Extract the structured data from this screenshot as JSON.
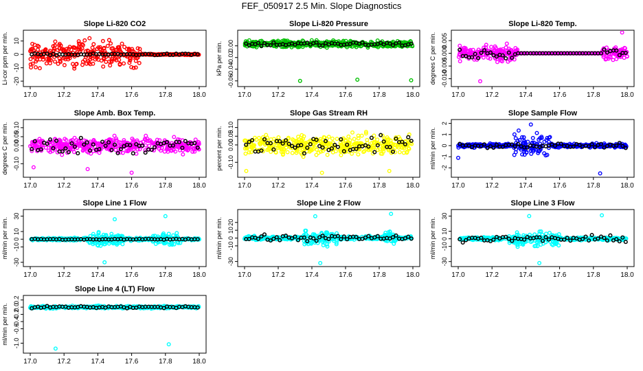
{
  "page_title": "FEF_050917  2.5 Min. Slope Diagnostics",
  "colors": {
    "overlay": "#000000",
    "axis": "#000000"
  },
  "chart_data": [
    {
      "type": "scatter",
      "title": "Slope Li-820 CO2",
      "ylabel": "Li-cor ppm per min.",
      "color": "#ff0000",
      "xlim": [
        17.0,
        18.0
      ],
      "ylim": [
        -22,
        16
      ],
      "xticks": [
        "17.0",
        "17.2",
        "17.4",
        "17.6",
        "17.8",
        "18.0"
      ],
      "yticks": [
        "-20",
        "-10",
        "0",
        "10"
      ],
      "pattern": {
        "spread": 6,
        "burst_from": 17.0,
        "burst_to": 17.65,
        "burst_spread": 14,
        "tail_from": 17.65,
        "tail_spread": 0.6,
        "overlay_spread": 0.8
      }
    },
    {
      "type": "scatter",
      "title": "Slope Li-820 Pressure",
      "ylabel": "kPa per min.",
      "color": "#00c000",
      "xlim": [
        17.0,
        18.0
      ],
      "ylim": [
        -0.065,
        0.022
      ],
      "xticks": [
        "17.0",
        "17.2",
        "17.4",
        "17.6",
        "17.8",
        "18.0"
      ],
      "yticks": [
        "-0.06",
        "-0.04",
        "-0.02",
        "0.00"
      ],
      "pattern": {
        "spread": 0.008,
        "center": 0.003,
        "outliers": [
          [
            17.33,
            -0.06
          ],
          [
            17.67,
            -0.058
          ],
          [
            17.99,
            -0.059
          ]
        ],
        "overlay_spread": 0.005
      }
    },
    {
      "type": "scatter",
      "title": "Slope Li-820 Temp.",
      "ylabel": "degrees C per min.",
      "color": "#ff00ff",
      "xlim": [
        17.0,
        18.0
      ],
      "ylim": [
        -0.012,
        0.008
      ],
      "xticks": [
        "17.0",
        "17.2",
        "17.4",
        "17.6",
        "17.8",
        "18.0"
      ],
      "yticks": [
        "-0.010",
        "-0.005",
        "0.000",
        "0.005"
      ],
      "pattern": {
        "spread": 0.0035,
        "burst_from": 17.0,
        "burst_to": 17.35,
        "burst_spread": 0.004,
        "flat_from": 17.35,
        "flat_to": 17.85,
        "tail_from": 17.85,
        "tail_spread": 0.004,
        "outliers": [
          [
            17.97,
            0.0082
          ],
          [
            17.13,
            -0.011
          ]
        ],
        "overlay_spread": 0.003
      }
    },
    {
      "type": "scatter",
      "title": "Slope Amb. Box Temp.",
      "ylabel": "degrees C per min.",
      "color": "#ff00ff",
      "xlim": [
        17.0,
        18.0
      ],
      "ylim": [
        -0.16,
        0.13
      ],
      "xticks": [
        "17.0",
        "17.2",
        "17.4",
        "17.6",
        "17.8",
        "18.0"
      ],
      "yticks": [
        "-0.10",
        "0.00",
        "0.05",
        "0.10"
      ],
      "pattern": {
        "spread": 0.06,
        "outliers": [
          [
            17.6,
            -0.15
          ],
          [
            17.02,
            -0.12
          ],
          [
            17.34,
            -0.13
          ]
        ],
        "overlay_spread": 0.06
      }
    },
    {
      "type": "scatter",
      "title": "Slope Gas Stream RH",
      "ylabel": "percent per min.",
      "color": "#ffff00",
      "xlim": [
        17.0,
        18.0
      ],
      "ylim": [
        -0.17,
        0.13
      ],
      "xticks": [
        "17.0",
        "17.2",
        "17.4",
        "17.6",
        "17.8",
        "18.0"
      ],
      "yticks": [
        "-0.10",
        "0.00",
        "0.05",
        "0.10"
      ],
      "pattern": {
        "spread": 0.08,
        "outliers": [
          [
            17.01,
            -0.15
          ],
          [
            17.46,
            -0.16
          ],
          [
            17.86,
            -0.15
          ]
        ],
        "overlay_spread": 0.07
      }
    },
    {
      "type": "scatter",
      "title": "Slope Sample Flow",
      "ylabel": "ml/min per min.",
      "color": "#0000ff",
      "xlim": [
        17.0,
        18.0
      ],
      "ylim": [
        -2.6,
        2.1
      ],
      "xticks": [
        "17.0",
        "17.2",
        "17.4",
        "17.6",
        "17.8",
        "18.0"
      ],
      "yticks": [
        "-2",
        "-1",
        "0",
        "1",
        "2"
      ],
      "pattern": {
        "spread": 0.25,
        "burst_from": 17.33,
        "burst_to": 17.55,
        "burst_spread": 1.4,
        "outliers": [
          [
            17.43,
            1.9
          ],
          [
            17.84,
            -2.5
          ],
          [
            17.0,
            -1.1
          ]
        ],
        "overlay_spread": 0.25
      }
    },
    {
      "type": "scatter",
      "title": "Slope Line 1 Flow",
      "ylabel": "ml/min per min.",
      "color": "#00ffff",
      "xlim": [
        17.0,
        18.0
      ],
      "ylim": [
        -32,
        35
      ],
      "xticks": [
        "17.0",
        "17.2",
        "17.4",
        "17.6",
        "17.8",
        "18.0"
      ],
      "yticks": [
        "-30",
        "-10",
        "0",
        "10",
        "30"
      ],
      "pattern": {
        "spread": 2.5,
        "burst_from": 17.35,
        "burst_to": 17.55,
        "burst_spread": 12,
        "burst2_from": 17.72,
        "burst2_to": 17.9,
        "burst2_spread": 12,
        "outliers": [
          [
            17.44,
            -30
          ],
          [
            17.5,
            26
          ],
          [
            17.8,
            30
          ]
        ],
        "overlay_spread": 1
      }
    },
    {
      "type": "scatter",
      "title": "Slope Line 2 Flow",
      "ylabel": "ml/min per min.",
      "color": "#00ffff",
      "xlim": [
        17.0,
        18.0
      ],
      "ylim": [
        -33,
        33
      ],
      "xticks": [
        "17.0",
        "17.2",
        "17.4",
        "17.6",
        "17.8",
        "18.0"
      ],
      "yticks": [
        "-30",
        "-10",
        "0",
        "10",
        "20"
      ],
      "pattern": {
        "spread": 3,
        "burst_from": 17.35,
        "burst_to": 17.55,
        "burst_spread": 14,
        "burst2_from": 17.83,
        "burst2_to": 17.9,
        "burst2_spread": 16,
        "outliers": [
          [
            17.45,
            -32
          ],
          [
            17.87,
            31
          ],
          [
            17.42,
            28
          ]
        ],
        "overlay_spread": 5
      }
    },
    {
      "type": "scatter",
      "title": "Slope Line 3 Flow",
      "ylabel": "ml/min per min.",
      "color": "#00ffff",
      "xlim": [
        17.0,
        18.0
      ],
      "ylim": [
        -33,
        35
      ],
      "xticks": [
        "17.0",
        "17.2",
        "17.4",
        "17.6",
        "17.8",
        "18.0"
      ],
      "yticks": [
        "-30",
        "-10",
        "0",
        "10",
        "30"
      ],
      "pattern": {
        "spread": 3,
        "burst_from": 17.3,
        "burst_to": 17.6,
        "burst_spread": 13,
        "outliers": [
          [
            17.48,
            -32
          ],
          [
            17.85,
            31
          ],
          [
            17.42,
            30
          ]
        ],
        "overlay_spread": 5
      }
    },
    {
      "type": "scatter",
      "title": "Slope Line 4 (LT) Flow",
      "ylabel": "ml/min per min.",
      "color": "#00ffff",
      "xlim": [
        17.0,
        18.0
      ],
      "ylim": [
        -1.2,
        0.25
      ],
      "xticks": [
        "17.0",
        "17.2",
        "17.4",
        "17.6",
        "17.8",
        "18.0"
      ],
      "yticks": [
        "-1.0",
        "-0.6",
        "-0.4",
        "-0.2",
        "0.0",
        "0.2"
      ],
      "pattern": {
        "spread": 0.05,
        "outliers": [
          [
            17.15,
            -1.15
          ],
          [
            17.82,
            -1.03
          ]
        ],
        "overlay_spread": 0.04
      }
    }
  ]
}
